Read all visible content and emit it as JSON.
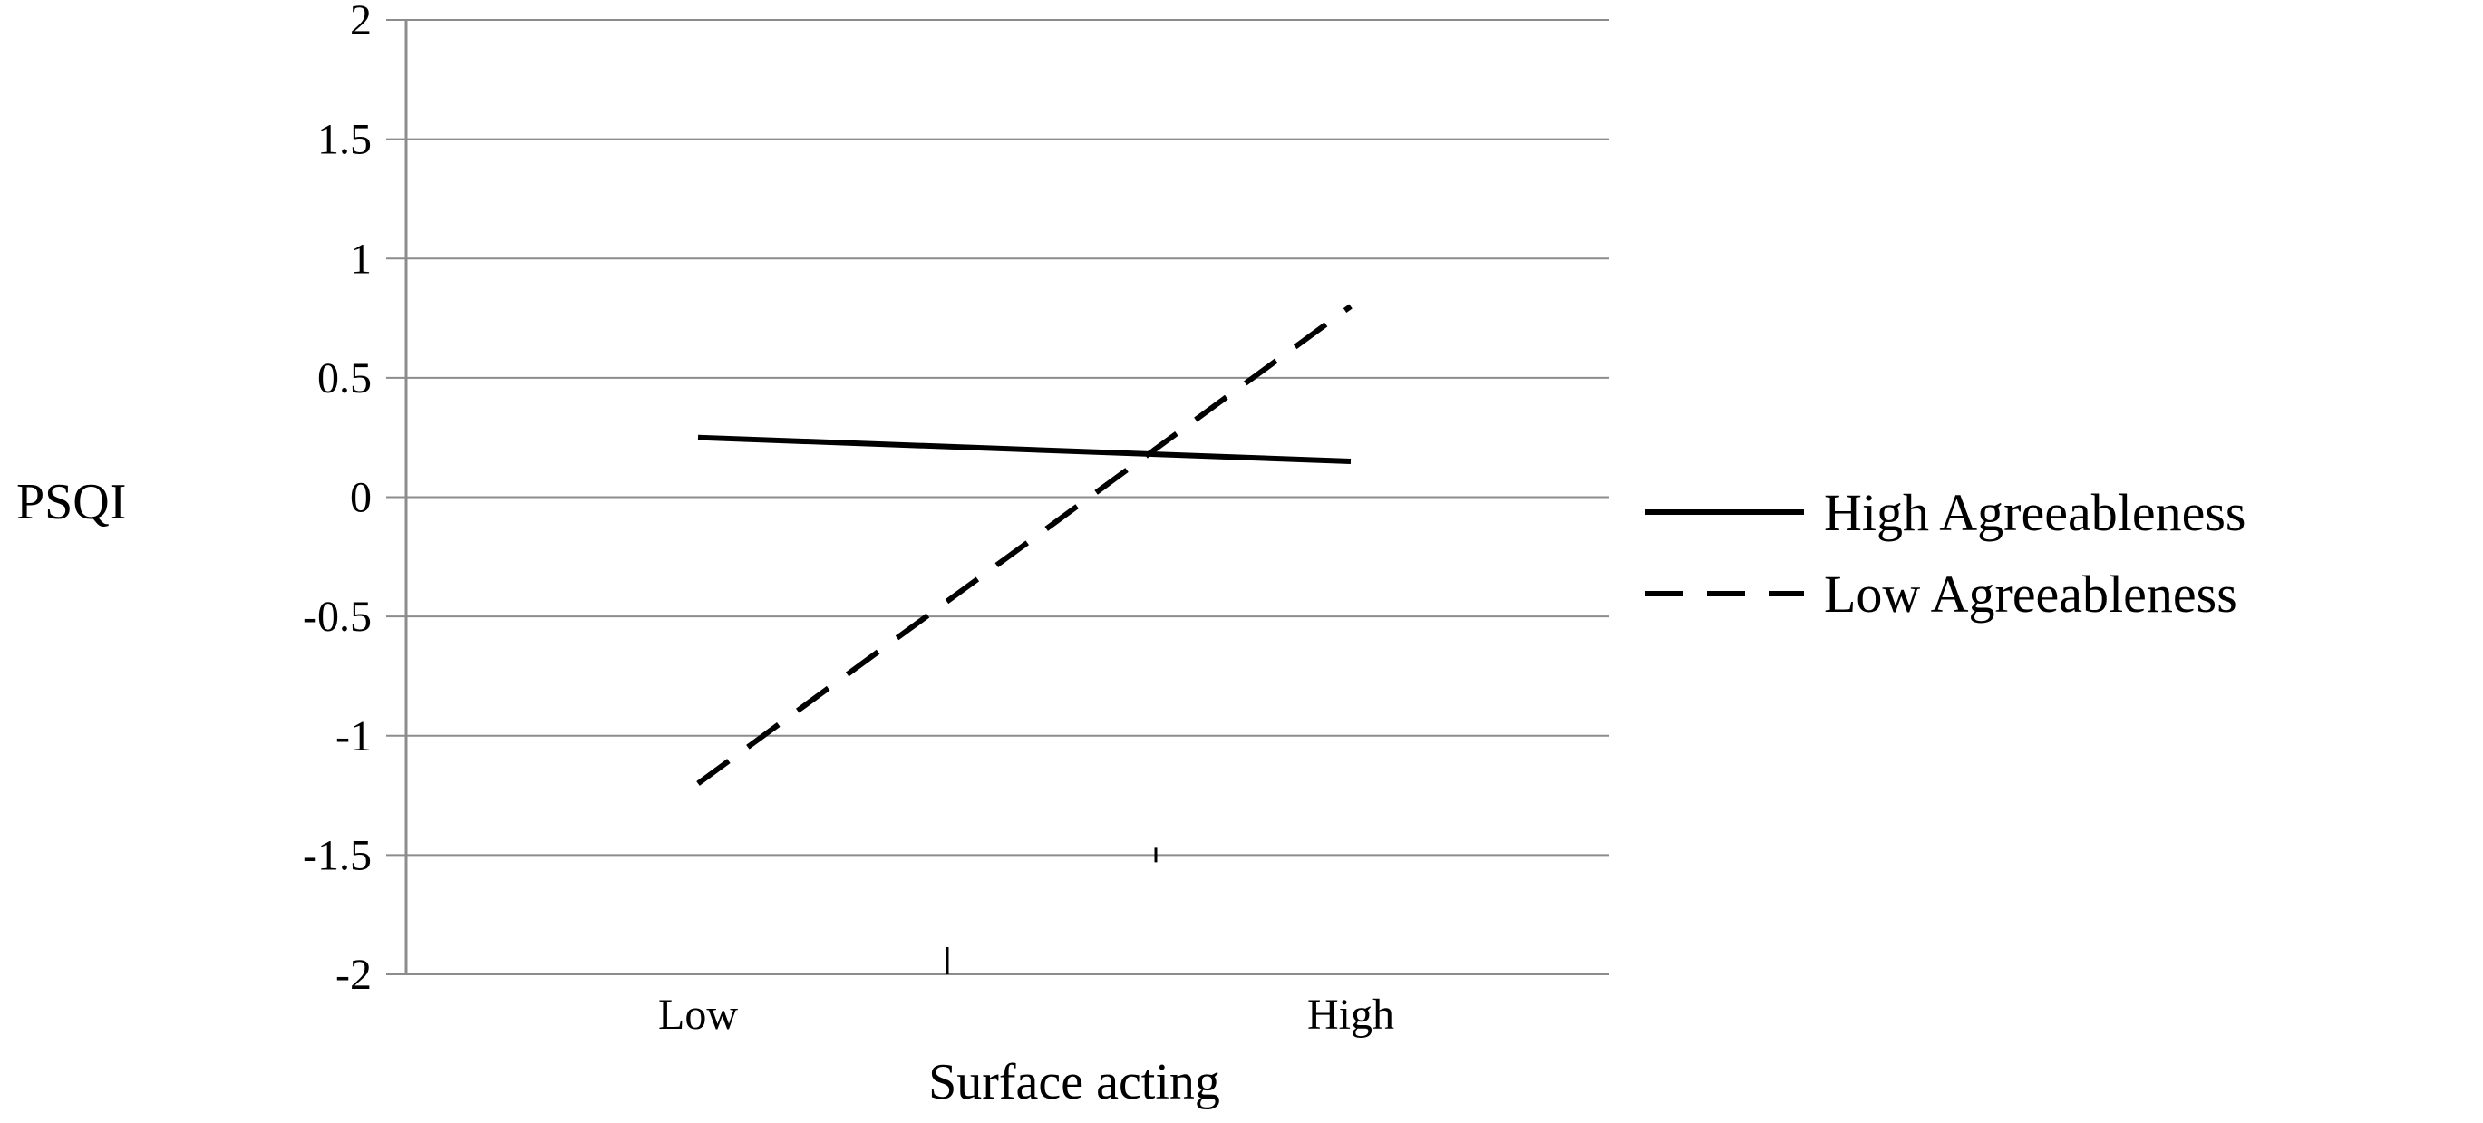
{
  "chart_data": {
    "type": "line",
    "title": "",
    "xlabel": "Surface acting",
    "ylabel": "PSQI",
    "categories": [
      "Low",
      "High"
    ],
    "ylim": [
      -2,
      2
    ],
    "yticks": [
      "2",
      "1.5",
      "1",
      "0.5",
      "0",
      "-0.5",
      "-1",
      "-1.5",
      "-2"
    ],
    "grid": true,
    "legend_position": "right",
    "series": [
      {
        "name": "High Agreeableness",
        "values": [
          0.25,
          0.15
        ],
        "style": "solid",
        "color": "#000000"
      },
      {
        "name": "Low Agreeableness",
        "values": [
          -1.2,
          0.8
        ],
        "style": "dashed",
        "color": "#000000"
      }
    ]
  }
}
